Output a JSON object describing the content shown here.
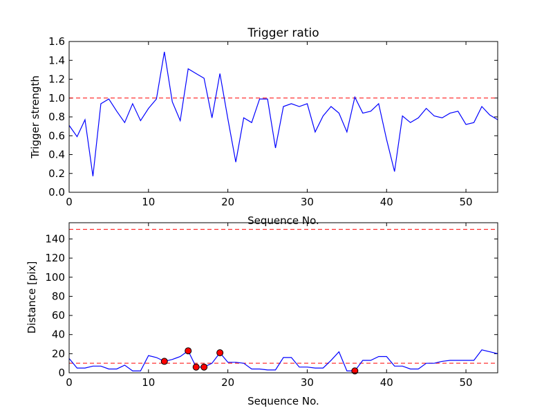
{
  "chart_data": [
    {
      "type": "line",
      "title": "Trigger ratio",
      "xlabel": "Sequence No.",
      "ylabel": "Trigger strength",
      "xlim": [
        0,
        54
      ],
      "ylim": [
        0,
        1.6
      ],
      "xticks": [
        0,
        10,
        20,
        30,
        40,
        50
      ],
      "yticks": [
        0.0,
        0.2,
        0.4,
        0.6,
        0.8,
        1.0,
        1.2,
        1.4,
        1.6
      ],
      "x": [
        0,
        1,
        2,
        3,
        4,
        5,
        6,
        7,
        8,
        9,
        10,
        11,
        12,
        13,
        14,
        15,
        16,
        17,
        18,
        19,
        20,
        21,
        22,
        23,
        24,
        25,
        26,
        27,
        28,
        29,
        30,
        31,
        32,
        33,
        34,
        35,
        36,
        37,
        38,
        39,
        40,
        41,
        42,
        43,
        44,
        45,
        46,
        47,
        48,
        49,
        50,
        51,
        52,
        53,
        54
      ],
      "series": [
        {
          "name": "trigger strength",
          "color": "#0000ff",
          "values": [
            0.71,
            0.59,
            0.77,
            0.17,
            0.94,
            0.99,
            0.86,
            0.74,
            0.94,
            0.76,
            0.89,
            0.99,
            1.49,
            0.96,
            0.76,
            1.31,
            1.26,
            1.21,
            0.79,
            1.26,
            0.78,
            0.32,
            0.79,
            0.74,
            0.99,
            0.99,
            0.47,
            0.91,
            0.94,
            0.91,
            0.94,
            0.64,
            0.81,
            0.91,
            0.84,
            0.64,
            1.01,
            0.84,
            0.86,
            0.94,
            0.56,
            0.22,
            0.81,
            0.74,
            0.79,
            0.89,
            0.81,
            0.79,
            0.84,
            0.86,
            0.72,
            0.74,
            0.91,
            0.82,
            0.77
          ]
        }
      ],
      "threshold": {
        "value": 1.0,
        "color": "#ff0000",
        "style": "dashed"
      }
    },
    {
      "type": "line",
      "title": "",
      "xlabel": "Sequence No.",
      "ylabel": "Distance [pix]",
      "xlim": [
        0,
        54
      ],
      "ylim": [
        0,
        157
      ],
      "xticks": [
        0,
        10,
        20,
        30,
        40,
        50
      ],
      "yticks": [
        0,
        20,
        40,
        60,
        80,
        100,
        120,
        140
      ],
      "x": [
        0,
        1,
        2,
        3,
        4,
        5,
        6,
        7,
        8,
        9,
        10,
        11,
        12,
        13,
        14,
        15,
        16,
        17,
        18,
        19,
        20,
        21,
        22,
        23,
        24,
        25,
        26,
        27,
        28,
        29,
        30,
        31,
        32,
        33,
        34,
        35,
        36,
        37,
        38,
        39,
        40,
        41,
        42,
        43,
        44,
        45,
        46,
        47,
        48,
        49,
        50,
        51,
        52,
        53,
        54
      ],
      "series": [
        {
          "name": "distance",
          "color": "#0000ff",
          "values": [
            15,
            5,
            5,
            7,
            7,
            4,
            4,
            8,
            2,
            2,
            18,
            16,
            12,
            14,
            17,
            23,
            6,
            6,
            10,
            21,
            11,
            11,
            10,
            4,
            4,
            3,
            3,
            16,
            16,
            6,
            6,
            5,
            5,
            13,
            22,
            2,
            2,
            13,
            13,
            17,
            17,
            7,
            7,
            4,
            4,
            10,
            10,
            12,
            13,
            13,
            13,
            13,
            24,
            22,
            20
          ]
        }
      ],
      "markers": {
        "color": "#ff0000",
        "points": [
          {
            "x": 12,
            "y": 12
          },
          {
            "x": 15,
            "y": 23
          },
          {
            "x": 16,
            "y": 6
          },
          {
            "x": 17,
            "y": 6
          },
          {
            "x": 19,
            "y": 21
          },
          {
            "x": 36,
            "y": 2
          }
        ]
      },
      "thresholds": [
        {
          "value": 10,
          "color": "#ff0000",
          "style": "dashed"
        },
        {
          "value": 150,
          "color": "#ff0000",
          "style": "dashed"
        }
      ]
    }
  ]
}
